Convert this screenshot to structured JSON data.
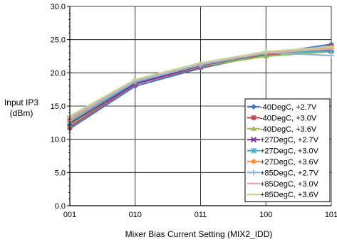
{
  "chart_data": {
    "type": "line",
    "x": [
      "001",
      "010",
      "011",
      "100",
      "101"
    ],
    "xlabel": "Mixer Bias Current Setting (MIX2_IDD)",
    "ylabel_lines": [
      "Input IP3",
      "(dBm)"
    ],
    "ylim": [
      0,
      30
    ],
    "yticks": [
      "0.0",
      "5.0",
      "10.0",
      "15.0",
      "20.0",
      "25.0",
      "30.0"
    ],
    "grid": true,
    "legend_position": "bottom-right",
    "series": [
      {
        "name": "-40DegC, +2.7V",
        "color": "#4472C4",
        "marker": "diamond",
        "values": [
          11.6,
          18.0,
          20.7,
          22.8,
          24.3
        ]
      },
      {
        "name": "-40DegC, +3.0V",
        "color": "#C0504D",
        "marker": "square",
        "values": [
          11.9,
          18.3,
          20.9,
          22.6,
          24.0
        ]
      },
      {
        "name": "-40DegC, +3.6V",
        "color": "#9BBB59",
        "marker": "triangle",
        "values": [
          12.2,
          18.5,
          21.0,
          22.5,
          23.2
        ]
      },
      {
        "name": "+27DegC, +2.7V",
        "color": "#7030A0",
        "marker": "x",
        "values": [
          12.4,
          18.4,
          21.1,
          22.9,
          23.5
        ]
      },
      {
        "name": "+27DegC, +3.0V",
        "color": "#4BACC6",
        "marker": "asterisk",
        "values": [
          12.6,
          18.6,
          21.2,
          22.9,
          23.3
        ]
      },
      {
        "name": "+27DegC, +3.6V",
        "color": "#F79646",
        "marker": "circle",
        "values": [
          12.9,
          18.8,
          21.3,
          23.0,
          23.8
        ]
      },
      {
        "name": "+85DegC, +2.7V",
        "color": "#95B3D7",
        "marker": "plus",
        "values": [
          13.1,
          18.7,
          21.2,
          23.1,
          22.6
        ]
      },
      {
        "name": "+85DegC, +3.0V",
        "color": "#E6A6A6",
        "marker": "dash",
        "values": [
          13.3,
          18.9,
          21.4,
          23.0,
          23.6
        ]
      },
      {
        "name": "+85DegC, +3.6V",
        "color": "#C3D69B",
        "marker": "dash",
        "values": [
          13.5,
          19.0,
          21.5,
          23.2,
          23.9
        ]
      }
    ]
  }
}
